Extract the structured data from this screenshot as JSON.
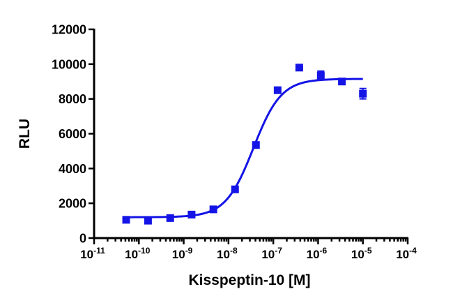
{
  "chart_data": {
    "type": "scatter",
    "xlabel": "Kisspeptin-10 [M]",
    "ylabel": "RLU",
    "x_scale": "log",
    "xlim": [
      1e-11,
      0.0001
    ],
    "ylim": [
      0,
      12000
    ],
    "x_ticks": [
      {
        "base": "10",
        "exp": "-11",
        "value": 1e-11
      },
      {
        "base": "10",
        "exp": "-10",
        "value": 1e-10
      },
      {
        "base": "10",
        "exp": "-9",
        "value": 1e-09
      },
      {
        "base": "10",
        "exp": "-8",
        "value": 1e-08
      },
      {
        "base": "10",
        "exp": "-7",
        "value": 1e-07
      },
      {
        "base": "10",
        "exp": "-6",
        "value": 1e-06
      },
      {
        "base": "10",
        "exp": "-5",
        "value": 1e-05
      },
      {
        "base": "10",
        "exp": "-4",
        "value": 0.0001
      }
    ],
    "y_ticks": [
      "0",
      "2000",
      "4000",
      "6000",
      "8000",
      "10000",
      "12000"
    ],
    "y_tick_values": [
      0,
      2000,
      4000,
      6000,
      8000,
      10000,
      12000
    ],
    "grid": false,
    "legend": "none",
    "color": "#1414e6",
    "series": [
      {
        "points": [
          {
            "x": 5.2e-11,
            "y": 1050,
            "err": 60
          },
          {
            "x": 1.6e-10,
            "y": 1000,
            "err": 60
          },
          {
            "x": 5e-10,
            "y": 1150,
            "err": 60
          },
          {
            "x": 1.5e-09,
            "y": 1350,
            "err": 70
          },
          {
            "x": 4.6e-09,
            "y": 1650,
            "err": 70
          },
          {
            "x": 1.4e-08,
            "y": 2800,
            "err": 90
          },
          {
            "x": 4.1e-08,
            "y": 5350,
            "err": 100
          },
          {
            "x": 1.25e-07,
            "y": 8500,
            "err": 120
          },
          {
            "x": 3.8e-07,
            "y": 9800,
            "err": 100
          },
          {
            "x": 1.15e-06,
            "y": 9350,
            "err": 250
          },
          {
            "x": 3.4e-06,
            "y": 9000,
            "err": 100
          },
          {
            "x": 1e-05,
            "y": 8300,
            "err": 300
          }
        ]
      }
    ],
    "fit": {
      "model": "sigmoidal dose-response",
      "bottom": 1200,
      "top": 9150,
      "ec50": 3.6e-08,
      "hill": 1.4,
      "x_range": [
        5e-11,
        1e-05
      ]
    }
  }
}
